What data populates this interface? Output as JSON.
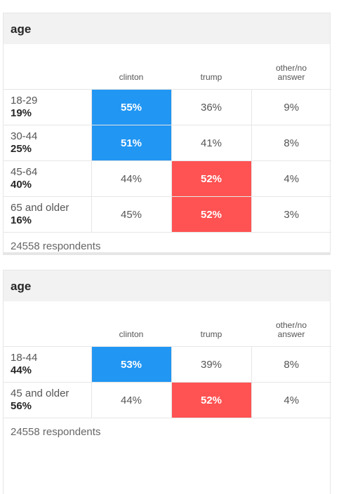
{
  "colors": {
    "clinton": "#2196f3",
    "trump": "#ff5252"
  },
  "tables": [
    {
      "title": "age",
      "headers": [
        "clinton",
        "trump",
        "other/no answer"
      ],
      "rows": [
        {
          "label": "18-29",
          "share": "19%",
          "clinton": "55%",
          "trump": "36%",
          "other": "9%",
          "winner": "clinton"
        },
        {
          "label": "30-44",
          "share": "25%",
          "clinton": "51%",
          "trump": "41%",
          "other": "8%",
          "winner": "clinton"
        },
        {
          "label": "45-64",
          "share": "40%",
          "clinton": "44%",
          "trump": "52%",
          "other": "4%",
          "winner": "trump"
        },
        {
          "label": "65 and older",
          "share": "16%",
          "clinton": "45%",
          "trump": "52%",
          "other": "3%",
          "winner": "trump"
        }
      ],
      "footer": "24558 respondents"
    },
    {
      "title": "age",
      "headers": [
        "clinton",
        "trump",
        "other/no answer"
      ],
      "rows": [
        {
          "label": "18-44",
          "share": "44%",
          "clinton": "53%",
          "trump": "39%",
          "other": "8%",
          "winner": "clinton"
        },
        {
          "label": "45 and older",
          "share": "56%",
          "clinton": "44%",
          "trump": "52%",
          "other": "4%",
          "winner": "trump"
        }
      ],
      "footer": "24558 respondents"
    }
  ]
}
